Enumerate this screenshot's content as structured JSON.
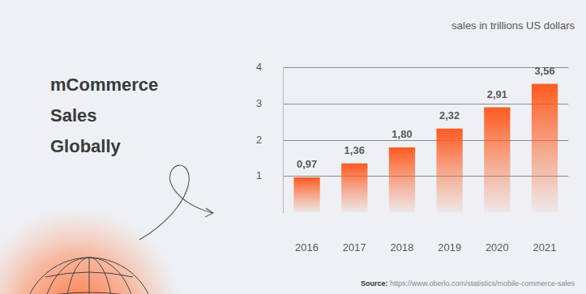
{
  "chart_data": {
    "type": "bar",
    "title": "mCommerce Sales Globally",
    "subtitle": "sales in trillions US dollars",
    "source": "Source: https://www.oberlo.com/statistics/mobile-commerce-sales",
    "categories": [
      "2016",
      "2017",
      "2018",
      "2019",
      "2020",
      "2021"
    ],
    "values": [
      0.97,
      1.36,
      1.8,
      2.32,
      2.91,
      3.56
    ],
    "value_labels": [
      "0,97",
      "1,36",
      "1,80",
      "2,32",
      "2,91",
      "3,56"
    ],
    "color": "#ff5a1f",
    "ylim": [
      0,
      4
    ],
    "yticks": [
      1,
      2,
      3,
      4
    ],
    "grid": true,
    "data_labels": true
  }
}
